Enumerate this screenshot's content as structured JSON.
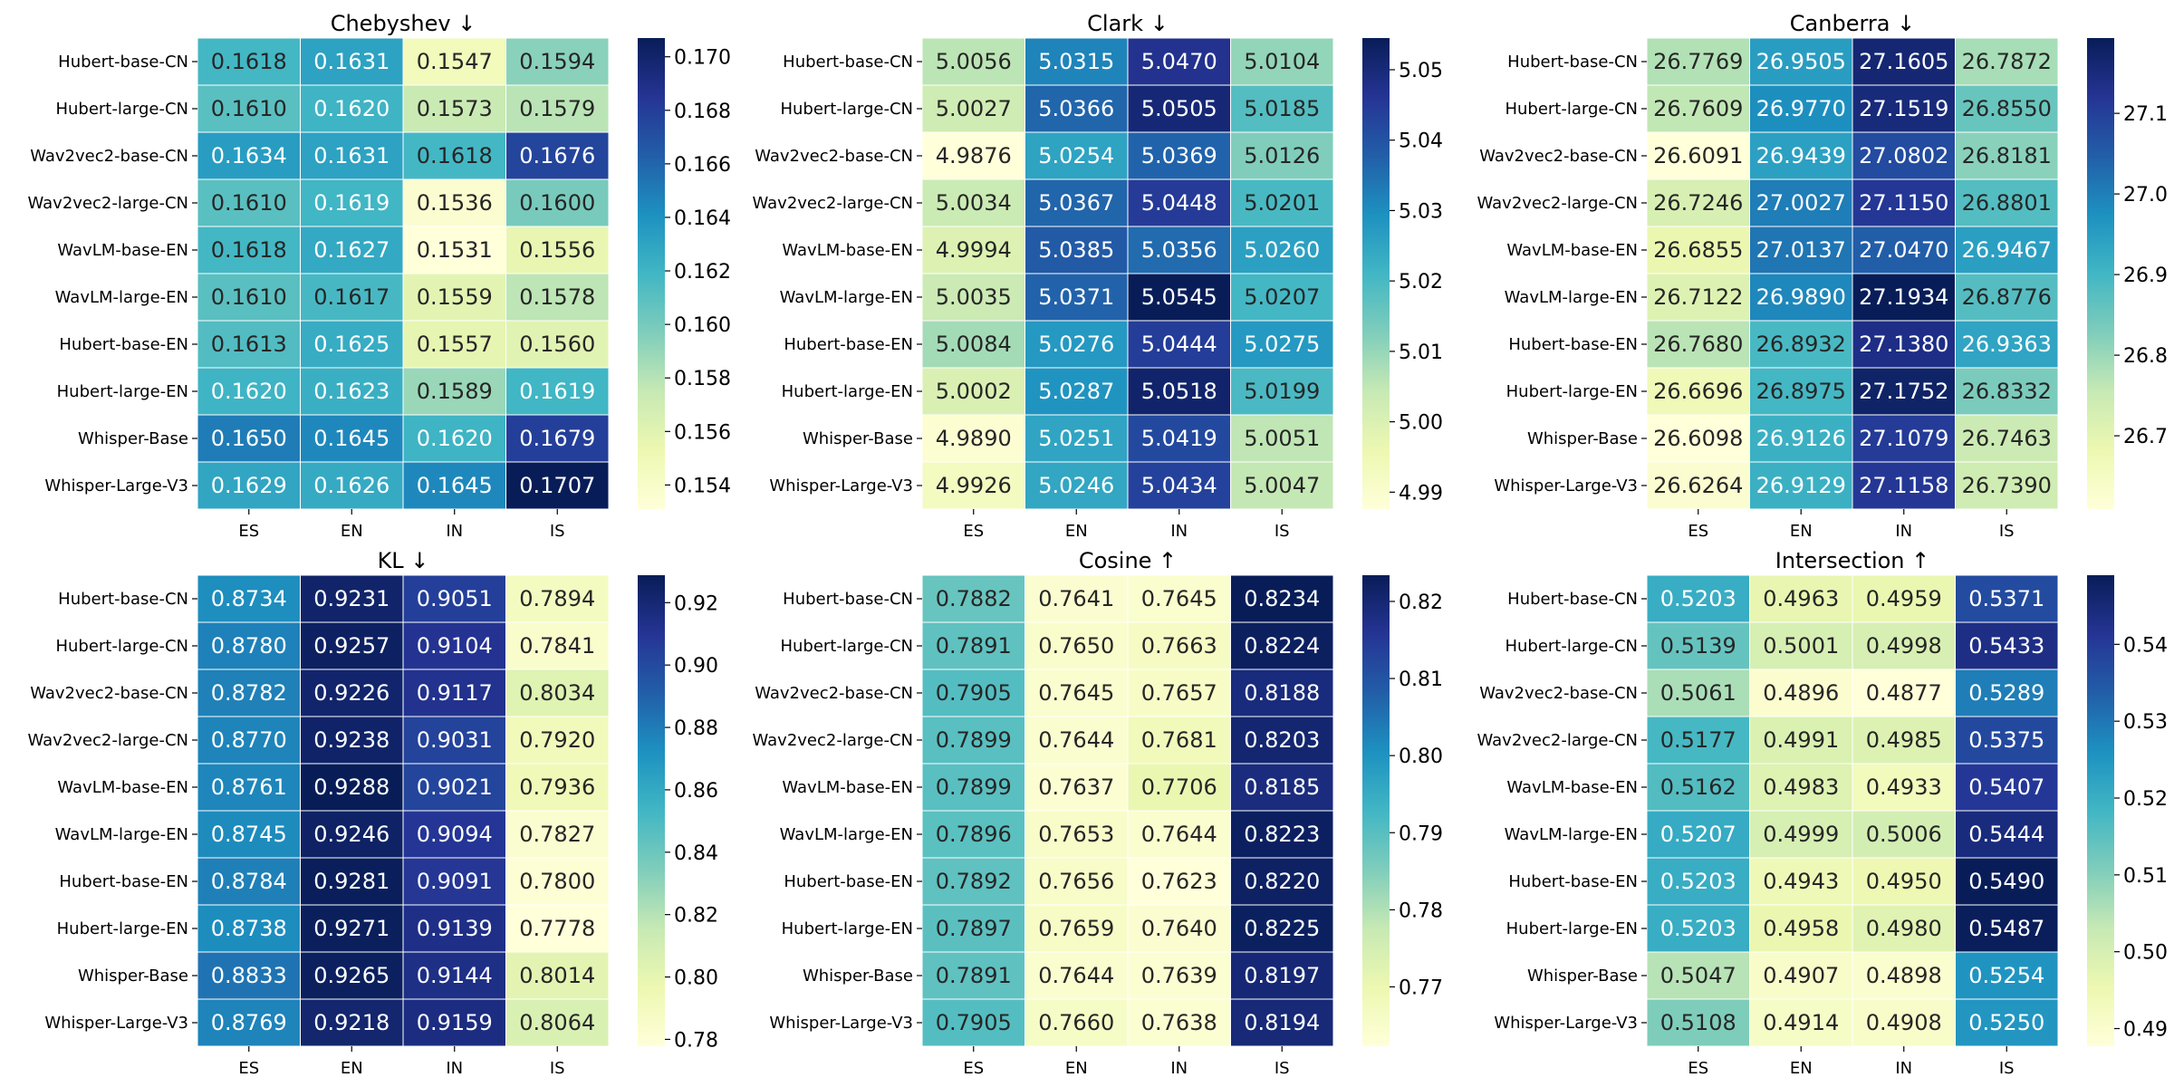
{
  "chart_data": [
    {
      "type": "heatmap",
      "title": "Chebyshev ↓",
      "rows": [
        "Hubert-base-CN",
        "Hubert-large-CN",
        "Wav2vec2-base-CN",
        "Wav2vec2-large-CN",
        "WavLM-base-EN",
        "WavLM-large-EN",
        "Hubert-base-EN",
        "Hubert-large-EN",
        "Whisper-Base",
        "Whisper-Large-V3"
      ],
      "columns": [
        "ES",
        "EN",
        "IN",
        "IS"
      ],
      "values": [
        [
          0.1618,
          0.1631,
          0.1547,
          0.1594
        ],
        [
          0.161,
          0.162,
          0.1573,
          0.1579
        ],
        [
          0.1634,
          0.1631,
          0.1618,
          0.1676
        ],
        [
          0.161,
          0.1619,
          0.1536,
          0.16
        ],
        [
          0.1618,
          0.1627,
          0.1531,
          0.1556
        ],
        [
          0.161,
          0.1617,
          0.1559,
          0.1578
        ],
        [
          0.1613,
          0.1625,
          0.1557,
          0.156
        ],
        [
          0.162,
          0.1623,
          0.1589,
          0.1619
        ],
        [
          0.165,
          0.1645,
          0.162,
          0.1679
        ],
        [
          0.1629,
          0.1626,
          0.1645,
          0.1707
        ]
      ],
      "colorbar": {
        "min": 0.1531,
        "max": 0.1707,
        "ticks": [
          "0.154",
          "0.156",
          "0.158",
          "0.160",
          "0.162",
          "0.164",
          "0.166",
          "0.168",
          "0.170"
        ]
      },
      "colormap": "YlGnBu"
    },
    {
      "type": "heatmap",
      "title": "Clark ↓",
      "rows": [
        "Hubert-base-CN",
        "Hubert-large-CN",
        "Wav2vec2-base-CN",
        "Wav2vec2-large-CN",
        "WavLM-base-EN",
        "WavLM-large-EN",
        "Hubert-base-EN",
        "Hubert-large-EN",
        "Whisper-Base",
        "Whisper-Large-V3"
      ],
      "columns": [
        "ES",
        "EN",
        "IN",
        "IS"
      ],
      "values": [
        [
          5.0056,
          5.0315,
          5.047,
          5.0104
        ],
        [
          5.0027,
          5.0366,
          5.0505,
          5.0185
        ],
        [
          4.9876,
          5.0254,
          5.0369,
          5.0126
        ],
        [
          5.0034,
          5.0367,
          5.0448,
          5.0201
        ],
        [
          4.9994,
          5.0385,
          5.0356,
          5.026
        ],
        [
          5.0035,
          5.0371,
          5.0545,
          5.0207
        ],
        [
          5.0084,
          5.0276,
          5.0444,
          5.0275
        ],
        [
          5.0002,
          5.0287,
          5.0518,
          5.0199
        ],
        [
          4.989,
          5.0251,
          5.0419,
          5.0051
        ],
        [
          4.9926,
          5.0246,
          5.0434,
          5.0047
        ]
      ],
      "colorbar": {
        "min": 4.9876,
        "max": 5.0545,
        "ticks": [
          "4.99",
          "5.00",
          "5.01",
          "5.02",
          "5.03",
          "5.04",
          "5.05"
        ]
      },
      "colormap": "YlGnBu"
    },
    {
      "type": "heatmap",
      "title": "Canberra ↓",
      "rows": [
        "Hubert-base-CN",
        "Hubert-large-CN",
        "Wav2vec2-base-CN",
        "Wav2vec2-large-CN",
        "WavLM-base-EN",
        "WavLM-large-EN",
        "Hubert-base-EN",
        "Hubert-large-EN",
        "Whisper-Base",
        "Whisper-Large-V3"
      ],
      "columns": [
        "ES",
        "EN",
        "IN",
        "IS"
      ],
      "values": [
        [
          26.7769,
          26.9505,
          27.1605,
          26.7872
        ],
        [
          26.7609,
          26.977,
          27.1519,
          26.855
        ],
        [
          26.6091,
          26.9439,
          27.0802,
          26.8181
        ],
        [
          26.7246,
          27.0027,
          27.115,
          26.8801
        ],
        [
          26.6855,
          27.0137,
          27.047,
          26.9467
        ],
        [
          26.7122,
          26.989,
          27.1934,
          26.8776
        ],
        [
          26.768,
          26.8932,
          27.138,
          26.9363
        ],
        [
          26.6696,
          26.8975,
          27.1752,
          26.8332
        ],
        [
          26.6098,
          26.9126,
          27.1079,
          26.7463
        ],
        [
          26.6264,
          26.9129,
          27.1158,
          26.739
        ]
      ],
      "colorbar": {
        "min": 26.6091,
        "max": 27.1934,
        "ticks": [
          "26.7",
          "26.8",
          "26.9",
          "27.0",
          "27.1"
        ]
      },
      "colormap": "YlGnBu"
    },
    {
      "type": "heatmap",
      "title": "KL ↓",
      "rows": [
        "Hubert-base-CN",
        "Hubert-large-CN",
        "Wav2vec2-base-CN",
        "Wav2vec2-large-CN",
        "WavLM-base-EN",
        "WavLM-large-EN",
        "Hubert-base-EN",
        "Hubert-large-EN",
        "Whisper-Base",
        "Whisper-Large-V3"
      ],
      "columns": [
        "ES",
        "EN",
        "IN",
        "IS"
      ],
      "values": [
        [
          0.8734,
          0.9231,
          0.9051,
          0.7894
        ],
        [
          0.878,
          0.9257,
          0.9104,
          0.7841
        ],
        [
          0.8782,
          0.9226,
          0.9117,
          0.8034
        ],
        [
          0.877,
          0.9238,
          0.9031,
          0.792
        ],
        [
          0.8761,
          0.9288,
          0.9021,
          0.7936
        ],
        [
          0.8745,
          0.9246,
          0.9094,
          0.7827
        ],
        [
          0.8784,
          0.9281,
          0.9091,
          0.78
        ],
        [
          0.8738,
          0.9271,
          0.9139,
          0.7778
        ],
        [
          0.8833,
          0.9265,
          0.9144,
          0.8014
        ],
        [
          0.8769,
          0.9218,
          0.9159,
          0.8064
        ]
      ],
      "colorbar": {
        "min": 0.7778,
        "max": 0.9288,
        "ticks": [
          "0.78",
          "0.80",
          "0.82",
          "0.84",
          "0.86",
          "0.88",
          "0.90",
          "0.92"
        ]
      },
      "colormap": "YlGnBu"
    },
    {
      "type": "heatmap",
      "title": "Cosine ↑",
      "rows": [
        "Hubert-base-CN",
        "Hubert-large-CN",
        "Wav2vec2-base-CN",
        "Wav2vec2-large-CN",
        "WavLM-base-EN",
        "WavLM-large-EN",
        "Hubert-base-EN",
        "Hubert-large-EN",
        "Whisper-Base",
        "Whisper-Large-V3"
      ],
      "columns": [
        "ES",
        "EN",
        "IN",
        "IS"
      ],
      "values": [
        [
          0.7882,
          0.7641,
          0.7645,
          0.8234
        ],
        [
          0.7891,
          0.765,
          0.7663,
          0.8224
        ],
        [
          0.7905,
          0.7645,
          0.7657,
          0.8188
        ],
        [
          0.7899,
          0.7644,
          0.7681,
          0.8203
        ],
        [
          0.7899,
          0.7637,
          0.7706,
          0.8185
        ],
        [
          0.7896,
          0.7653,
          0.7644,
          0.8223
        ],
        [
          0.7892,
          0.7656,
          0.7623,
          0.822
        ],
        [
          0.7897,
          0.7659,
          0.764,
          0.8225
        ],
        [
          0.7891,
          0.7644,
          0.7639,
          0.8197
        ],
        [
          0.7905,
          0.766,
          0.7638,
          0.8194
        ]
      ],
      "colorbar": {
        "min": 0.7623,
        "max": 0.8234,
        "ticks": [
          "0.77",
          "0.78",
          "0.79",
          "0.80",
          "0.81",
          "0.82"
        ]
      },
      "colormap": "YlGnBu"
    },
    {
      "type": "heatmap",
      "title": "Intersection ↑",
      "rows": [
        "Hubert-base-CN",
        "Hubert-large-CN",
        "Wav2vec2-base-CN",
        "Wav2vec2-large-CN",
        "WavLM-base-EN",
        "WavLM-large-EN",
        "Hubert-base-EN",
        "Hubert-large-EN",
        "Whisper-Base",
        "Whisper-Large-V3"
      ],
      "columns": [
        "ES",
        "EN",
        "IN",
        "IS"
      ],
      "values": [
        [
          0.5203,
          0.4963,
          0.4959,
          0.5371
        ],
        [
          0.5139,
          0.5001,
          0.4998,
          0.5433
        ],
        [
          0.5061,
          0.4896,
          0.4877,
          0.5289
        ],
        [
          0.5177,
          0.4991,
          0.4985,
          0.5375
        ],
        [
          0.5162,
          0.4983,
          0.4933,
          0.5407
        ],
        [
          0.5207,
          0.4999,
          0.5006,
          0.5444
        ],
        [
          0.5203,
          0.4943,
          0.495,
          0.549
        ],
        [
          0.5203,
          0.4958,
          0.498,
          0.5487
        ],
        [
          0.5047,
          0.4907,
          0.4898,
          0.5254
        ],
        [
          0.5108,
          0.4914,
          0.4908,
          0.525
        ]
      ],
      "colorbar": {
        "min": 0.4877,
        "max": 0.549,
        "ticks": [
          "0.49",
          "0.50",
          "0.51",
          "0.52",
          "0.53",
          "0.54"
        ]
      },
      "colormap": "YlGnBu"
    }
  ]
}
